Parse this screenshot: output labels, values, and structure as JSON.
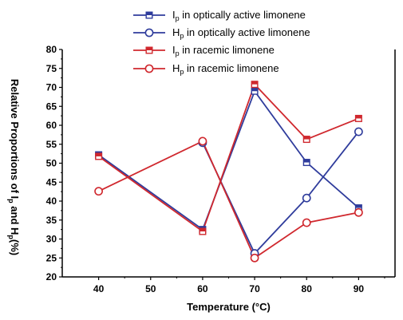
{
  "chart_data": {
    "type": "line",
    "xlabel": "Temperature (°C)",
    "ylabel": {
      "parts": [
        "Relative Proportions of ",
        "I",
        "p",
        " and H",
        "p",
        "(%)"
      ]
    },
    "x": [
      40,
      60,
      70,
      80,
      90
    ],
    "xticks": [
      "40",
      "50",
      "60",
      "70",
      "80",
      "90"
    ],
    "xlim": [
      33,
      97
    ],
    "ylim": [
      20,
      80
    ],
    "yticks": [
      "20",
      "25",
      "30",
      "35",
      "40",
      "45",
      "50",
      "55",
      "60",
      "65",
      "70",
      "75",
      "80"
    ],
    "grid": false,
    "legend_position": "top-center",
    "series": [
      {
        "name": {
          "main": "I",
          "sub": "p",
          "rest": " in optically active limonene"
        },
        "color": "#2f3c9c",
        "marker": "square-half-filled",
        "values": [
          52.2,
          32.5,
          69.0,
          50.2,
          38.2
        ]
      },
      {
        "name": {
          "main": "H",
          "sub": "p",
          "rest": " in optically active limonene"
        },
        "color": "#2f3c9c",
        "marker": "circle-open",
        "values": [
          null,
          55.4,
          26.2,
          40.8,
          58.3
        ]
      },
      {
        "name": {
          "main": "I",
          "sub": "p",
          "rest": " in racemic limonene"
        },
        "color": "#d0282e",
        "marker": "square-half-filled",
        "values": [
          51.8,
          32.0,
          70.8,
          56.3,
          61.8
        ]
      },
      {
        "name": {
          "main": "H",
          "sub": "p",
          "rest": " in racemic limonene"
        },
        "color": "#d0282e",
        "marker": "circle-open",
        "values": [
          42.6,
          55.8,
          25.0,
          34.3,
          37.0
        ]
      }
    ]
  }
}
